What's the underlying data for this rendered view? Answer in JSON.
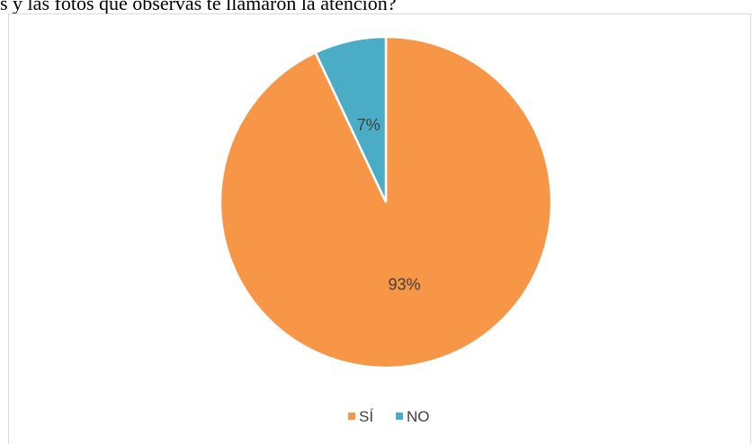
{
  "document": {
    "caption_fragment": "s y las fotos que observas te llamaron la atención?"
  },
  "chart_data": {
    "type": "pie",
    "slices": [
      {
        "name": "SÍ",
        "value": 93,
        "label": "93%",
        "color": "#f79646"
      },
      {
        "name": "NO",
        "value": 7,
        "label": "7%",
        "color": "#4bacc6"
      }
    ],
    "legend": {
      "position": "bottom"
    }
  }
}
